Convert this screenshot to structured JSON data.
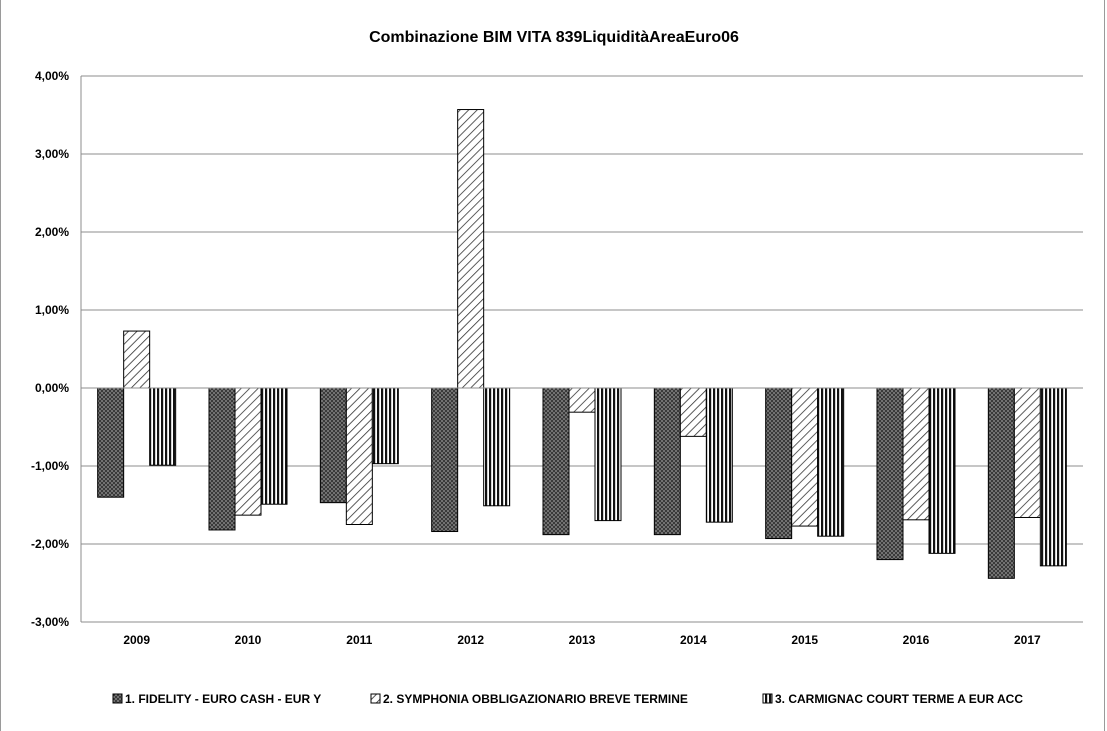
{
  "chart_data": {
    "type": "bar",
    "title": "Combinazione BIM VITA 839LiquiditàAreaEuro06",
    "xlabel": "",
    "ylabel": "",
    "categories": [
      "2009",
      "2010",
      "2011",
      "2012",
      "2013",
      "2014",
      "2015",
      "2016",
      "2017"
    ],
    "series": [
      {
        "name": "1. FIDELITY - EURO CASH - EUR Y",
        "pattern": "dots",
        "values": [
          -1.4,
          -1.82,
          -1.47,
          -1.84,
          -1.88,
          -1.88,
          -1.93,
          -2.2,
          -2.44
        ]
      },
      {
        "name": "2. SYMPHONIA OBBLIGAZIONARIO BREVE TERMINE",
        "pattern": "diagonal",
        "values": [
          0.73,
          -1.63,
          -1.75,
          3.57,
          -0.31,
          -0.62,
          -1.77,
          -1.69,
          -1.66
        ]
      },
      {
        "name": "3. CARMIGNAC COURT TERME A EUR ACC",
        "pattern": "vertical",
        "values": [
          -0.99,
          -1.49,
          -0.97,
          -1.51,
          -1.7,
          -1.72,
          -1.9,
          -2.12,
          -2.28
        ]
      }
    ],
    "ylim": [
      -3,
      4
    ],
    "yticks": [
      "4,00%",
      "3,00%",
      "2,00%",
      "1,00%",
      "0,00%",
      "-1,00%",
      "-2,00%",
      "-3,00%"
    ],
    "ytick_values": [
      4,
      3,
      2,
      1,
      0,
      -1,
      -2,
      -3
    ],
    "grid": true,
    "legend_position": "bottom"
  }
}
